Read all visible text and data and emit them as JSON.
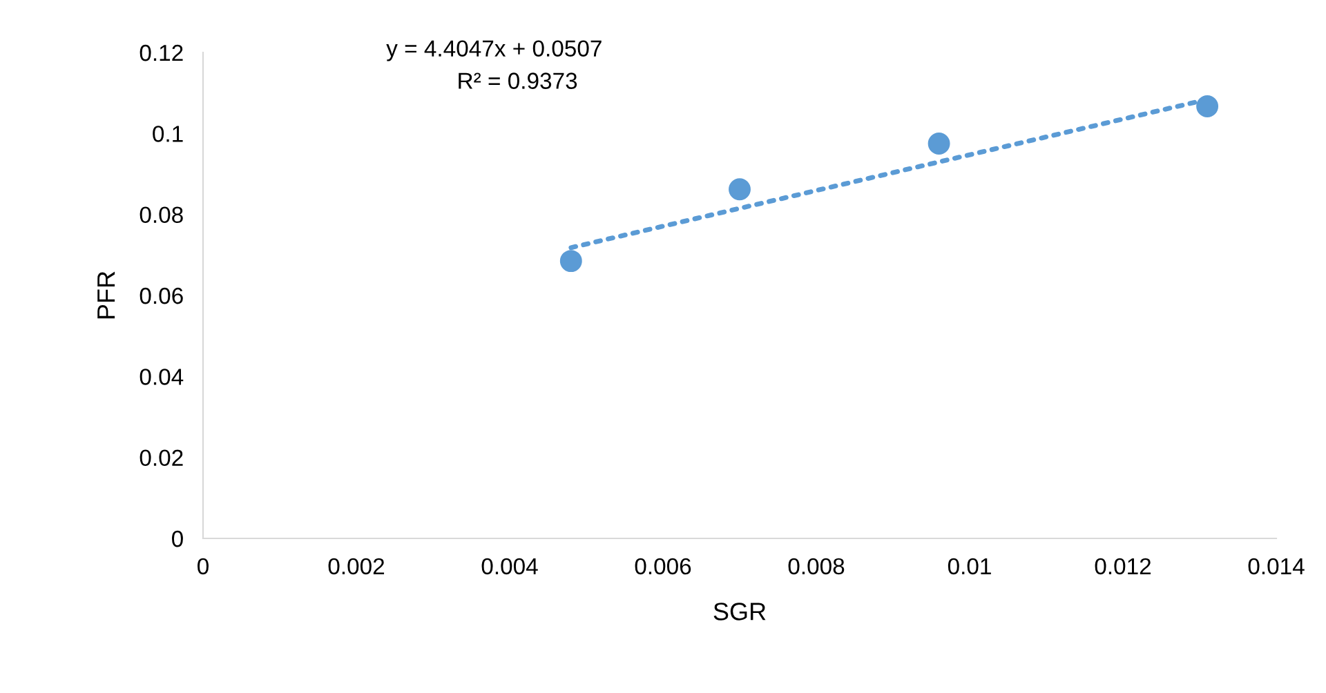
{
  "chart_data": {
    "type": "scatter",
    "xlabel": "SGR",
    "ylabel": "PFR",
    "annotations": [
      "y = 4.4047x + 0.0507",
      "R² = 0.9373"
    ],
    "series": [
      {
        "color": "#5b9bd5",
        "x": [
          0.0048,
          0.007,
          0.0096,
          0.0131
        ],
        "values": [
          0.0685,
          0.0862,
          0.0975,
          0.1067
        ],
        "marker": "circle"
      },
      {
        "type": "line",
        "color": "#5b9bd5",
        "x": [
          0.0048,
          0.0131
        ],
        "values": [
          0.0718,
          0.1084
        ],
        "line_style": "dotted"
      }
    ],
    "xlim": [
      0,
      0.014
    ],
    "xticks": [
      0,
      0.002,
      0.004,
      0.006,
      0.008,
      0.01,
      0.012,
      0.014
    ],
    "ylim": [
      0,
      0.12
    ],
    "yticks": [
      0,
      0.02,
      0.04,
      0.06,
      0.08,
      0.1,
      0.12
    ],
    "grid": false,
    "legend": false
  }
}
